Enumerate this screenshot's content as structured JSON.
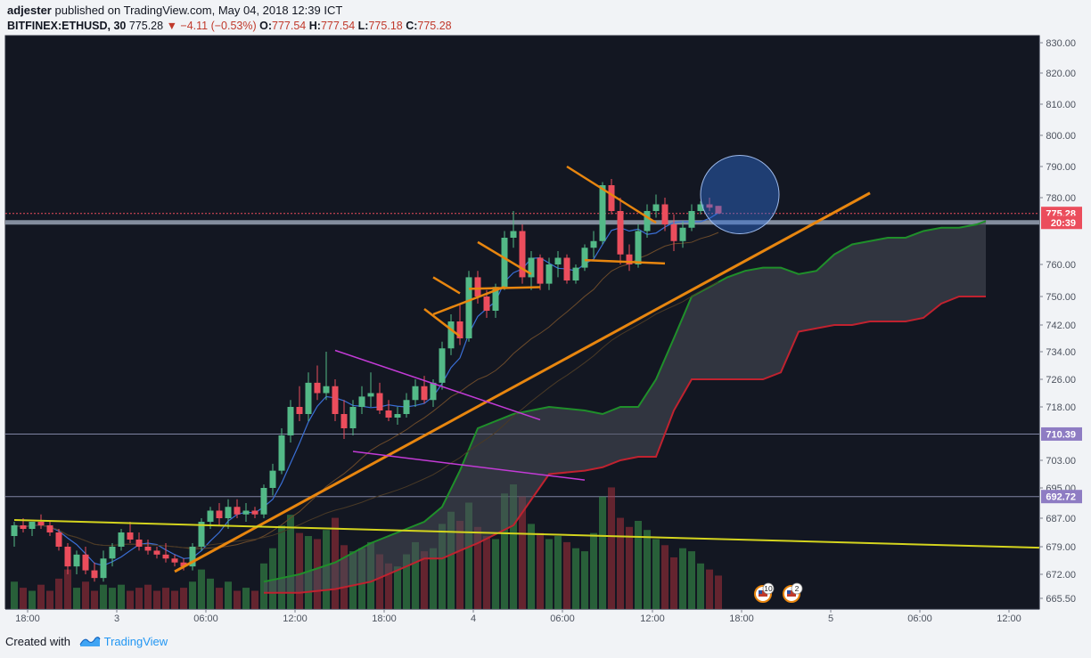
{
  "header": {
    "author": "adjester",
    "published_text": "published on TradingView.com, May 04, 2018 12:39 ICT",
    "symbol": "BITFINEX:ETHUSD, 30",
    "last": "775.28",
    "change": "▼ −4.11 (−0.53%)",
    "o_label": "O:",
    "o_value": "777.54",
    "h_label": "H:",
    "h_value": "777.54",
    "l_label": "L:",
    "l_value": "775.18",
    "c_label": "C:",
    "c_value": "775.28"
  },
  "footer": {
    "created_with": "Created with",
    "brand": "TradingView"
  },
  "colors": {
    "background": "#131722",
    "up": "#53b987",
    "down": "#eb4d5c",
    "trendline": "#e8860f",
    "wedge": "#c33bd6",
    "support": "#d4d41e",
    "cloud_top": "#1f8f2a",
    "cloud_bottom": "#c0222f"
  },
  "chart_data": {
    "type": "candlestick",
    "symbol": "BITFINEX:ETHUSD",
    "interval": "30",
    "price_axis_labels": [
      "830.00",
      "820.00",
      "810.00",
      "800.00",
      "790.00",
      "780.00",
      "760.00",
      "750.00",
      "742.00",
      "734.00",
      "726.00",
      "718.00",
      "703.00",
      "695.00",
      "687.00",
      "679.00",
      "672.00",
      "665.50"
    ],
    "time_axis_labels": [
      "18:00",
      "3",
      "06:00",
      "12:00",
      "18:00",
      "4",
      "06:00",
      "12:00",
      "18:00",
      "5",
      "06:00",
      "12:00"
    ],
    "price_markers": [
      {
        "label": "775.28",
        "value": 775.28,
        "color": "#eb4d5c"
      },
      {
        "label": "20:39",
        "value": 772.6,
        "color": "#eb4d5c"
      },
      {
        "label": "710.39",
        "value": 710.39,
        "color": "#8e7cc3"
      },
      {
        "label": "692.72",
        "value": 692.72,
        "color": "#8e7cc3"
      }
    ],
    "horizontal_levels": [
      775.28,
      772.6,
      710.39,
      692.72
    ],
    "candles": [
      [
        0,
        682,
        686,
        679,
        685
      ],
      [
        1,
        685,
        687,
        683,
        684
      ],
      [
        2,
        684,
        686,
        682,
        686
      ],
      [
        3,
        686,
        688,
        684,
        685
      ],
      [
        4,
        685,
        686,
        682,
        683
      ],
      [
        5,
        683,
        684,
        678,
        679
      ],
      [
        6,
        679,
        680,
        672,
        674
      ],
      [
        7,
        674,
        678,
        672,
        677
      ],
      [
        8,
        677,
        679,
        672,
        673
      ],
      [
        9,
        673,
        675,
        670,
        671
      ],
      [
        10,
        671,
        678,
        670,
        676
      ],
      [
        11,
        676,
        680,
        674,
        679
      ],
      [
        12,
        679,
        684,
        678,
        683
      ],
      [
        13,
        683,
        686,
        680,
        681
      ],
      [
        14,
        681,
        683,
        678,
        679
      ],
      [
        15,
        679,
        681,
        677,
        678
      ],
      [
        16,
        678,
        679,
        676,
        677
      ],
      [
        17,
        677,
        680,
        675,
        676
      ],
      [
        18,
        676,
        677,
        674,
        675
      ],
      [
        19,
        675,
        676,
        673,
        674
      ],
      [
        20,
        674,
        680,
        673,
        679
      ],
      [
        21,
        679,
        687,
        678,
        686
      ],
      [
        22,
        686,
        690,
        684,
        689
      ],
      [
        23,
        689,
        691,
        685,
        687
      ],
      [
        24,
        687,
        692,
        684,
        690
      ],
      [
        25,
        690,
        692,
        687,
        688
      ],
      [
        26,
        688,
        691,
        686,
        689
      ],
      [
        27,
        689,
        690,
        687,
        688
      ],
      [
        28,
        688,
        696,
        687,
        695
      ],
      [
        29,
        695,
        702,
        693,
        700
      ],
      [
        30,
        700,
        712,
        699,
        710
      ],
      [
        31,
        710,
        720,
        708,
        718
      ],
      [
        32,
        718,
        724,
        714,
        716
      ],
      [
        33,
        716,
        728,
        714,
        725
      ],
      [
        34,
        725,
        730,
        720,
        722
      ],
      [
        35,
        722,
        734,
        720,
        724
      ],
      [
        36,
        724,
        726,
        714,
        716
      ],
      [
        37,
        716,
        720,
        709,
        712
      ],
      [
        38,
        712,
        720,
        710,
        718
      ],
      [
        39,
        718,
        724,
        716,
        721
      ],
      [
        40,
        721,
        728,
        718,
        722
      ],
      [
        41,
        722,
        725,
        716,
        717
      ],
      [
        42,
        717,
        720,
        714,
        715
      ],
      [
        43,
        715,
        718,
        713,
        716
      ],
      [
        44,
        716,
        722,
        715,
        720
      ],
      [
        45,
        720,
        726,
        718,
        724
      ],
      [
        46,
        724,
        727,
        719,
        720
      ],
      [
        47,
        720,
        726,
        718,
        725
      ],
      [
        48,
        725,
        737,
        723,
        735
      ],
      [
        49,
        735,
        745,
        733,
        743
      ],
      [
        50,
        743,
        748,
        736,
        738
      ],
      [
        51,
        738,
        758,
        737,
        756
      ],
      [
        52,
        756,
        758,
        748,
        750
      ],
      [
        53,
        750,
        752,
        744,
        746
      ],
      [
        54,
        746,
        754,
        744,
        753
      ],
      [
        55,
        753,
        770,
        752,
        768
      ],
      [
        56,
        768,
        776,
        765,
        770
      ],
      [
        57,
        770,
        772,
        754,
        756
      ],
      [
        58,
        756,
        764,
        752,
        762
      ],
      [
        59,
        762,
        763,
        752,
        754
      ],
      [
        60,
        754,
        762,
        752,
        760
      ],
      [
        61,
        760,
        764,
        756,
        762
      ],
      [
        62,
        762,
        763,
        754,
        755
      ],
      [
        63,
        755,
        760,
        754,
        759
      ],
      [
        64,
        759,
        766,
        758,
        765
      ],
      [
        65,
        765,
        770,
        762,
        767
      ],
      [
        66,
        767,
        785,
        766,
        784
      ],
      [
        67,
        784,
        786,
        775,
        776
      ],
      [
        68,
        776,
        780,
        760,
        763
      ],
      [
        69,
        763,
        766,
        758,
        760
      ],
      [
        70,
        760,
        772,
        759,
        770
      ],
      [
        71,
        770,
        778,
        768,
        776
      ],
      [
        72,
        776,
        781,
        774,
        778
      ],
      [
        73,
        778,
        780,
        770,
        772
      ],
      [
        74,
        772,
        775,
        764,
        767
      ],
      [
        75,
        767,
        773,
        765,
        771
      ],
      [
        76,
        771,
        778,
        770,
        776
      ],
      [
        77,
        776,
        779,
        775,
        778
      ],
      [
        78,
        778,
        780,
        776,
        777
      ],
      [
        79,
        777.54,
        777.54,
        775.18,
        775.28
      ]
    ],
    "volume": [
      18,
      14,
      12,
      16,
      12,
      20,
      26,
      14,
      18,
      12,
      16,
      14,
      16,
      12,
      14,
      16,
      12,
      14,
      12,
      14,
      18,
      26,
      20,
      14,
      18,
      12,
      14,
      12,
      30,
      40,
      55,
      62,
      50,
      48,
      46,
      52,
      60,
      42,
      38,
      40,
      44,
      36,
      30,
      28,
      36,
      44,
      38,
      40,
      56,
      64,
      58,
      70,
      54,
      48,
      46,
      76,
      82,
      74,
      56,
      50,
      46,
      48,
      44,
      40,
      38,
      50,
      74,
      80,
      60,
      54,
      58,
      52,
      46,
      42,
      34,
      40,
      38,
      30,
      26,
      22
    ],
    "cloud": {
      "x": [
        28,
        32,
        36,
        40,
        44,
        46,
        48,
        50,
        52,
        56,
        60,
        64,
        66,
        68,
        70,
        72,
        74,
        76,
        78,
        80,
        82,
        84,
        86,
        88,
        90,
        92,
        94,
        96,
        98,
        100,
        102,
        104,
        106,
        108,
        109
      ],
      "span_a": [
        670,
        672,
        675,
        680,
        684,
        686,
        690,
        700,
        712,
        716,
        718,
        717,
        716,
        718,
        718,
        726,
        738,
        750,
        753,
        756,
        758,
        759,
        759,
        757,
        758,
        763,
        766,
        767,
        768,
        768,
        770,
        771,
        771,
        772,
        773
      ],
      "span_b": [
        667,
        667,
        668,
        670,
        674,
        676,
        676,
        678,
        680,
        685,
        699,
        700,
        701,
        703,
        704,
        704,
        717,
        726,
        726,
        726,
        726,
        726,
        728,
        740,
        741,
        742,
        742,
        743,
        743,
        743,
        744,
        748,
        750,
        750,
        750
      ]
    },
    "annotations": {
      "trendlines": [
        {
          "type": "rising_trendline",
          "from": [
            18,
            672.7
          ],
          "to": [
            96,
            781.5
          ]
        },
        {
          "type": "support_line",
          "from": [
            0,
            686.5
          ],
          "to": [
            132,
            677.7
          ]
        },
        {
          "type": "wedge_upper",
          "from": [
            36,
            734.4
          ],
          "to": [
            59,
            714.4
          ]
        },
        {
          "type": "wedge_lower",
          "from": [
            38,
            705.5
          ],
          "to": [
            64,
            697.3
          ]
        }
      ],
      "highlight_circle": {
        "x": 81.4,
        "y": 781
      }
    },
    "events": [
      {
        "label": "10"
      },
      {
        "label": "2"
      }
    ]
  }
}
